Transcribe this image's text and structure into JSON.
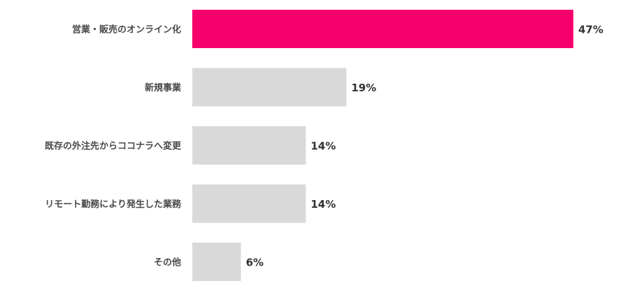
{
  "chart_data": {
    "type": "bar",
    "orientation": "horizontal",
    "categories": [
      "営業・販売のオンライン化",
      "新規事業",
      "既存の外注先からココナラへ変更",
      "リモート勤務により発生した業務",
      "その他"
    ],
    "values": [
      47,
      19,
      14,
      14,
      6
    ],
    "value_labels": [
      "47%",
      "19%",
      "14%",
      "14%",
      "6%"
    ],
    "unit": "%",
    "xlim": [
      0,
      47
    ],
    "grid": false,
    "colors": {
      "highlight": "#f5006c",
      "default": "#d9d9d9"
    },
    "highlight_index": 0
  }
}
